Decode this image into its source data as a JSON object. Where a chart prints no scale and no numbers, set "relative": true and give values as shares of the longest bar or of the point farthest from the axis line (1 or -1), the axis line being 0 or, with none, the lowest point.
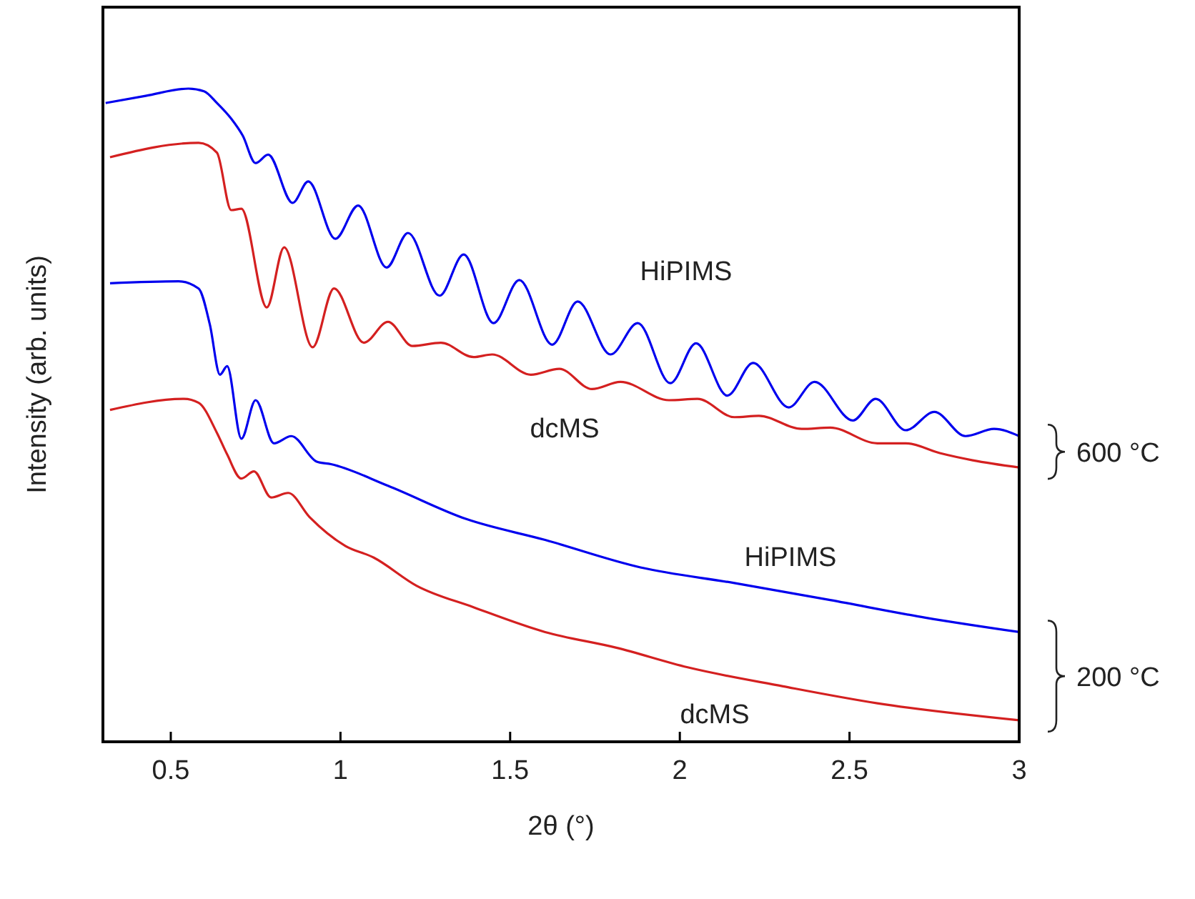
{
  "chart_data": {
    "type": "line",
    "relative": true,
    "xlabel": "2θ (°)",
    "ylabel": "Intensity (arb. units)",
    "xlim": [
      0.3,
      3
    ],
    "xticks": [
      0.5,
      1,
      1.5,
      2,
      2.5,
      3
    ],
    "annotations": [
      "600 °C",
      "200 °C"
    ],
    "series": [
      {
        "name": "HiPIMS",
        "color": "#0000ee",
        "x": [
          0.308,
          0.426,
          0.552,
          0.598,
          0.636,
          0.678,
          0.712,
          0.75,
          0.787,
          0.859,
          0.905,
          0.985,
          1.052,
          1.136,
          1.199,
          1.292,
          1.363,
          1.451,
          1.527,
          1.624,
          1.699,
          1.796,
          1.876,
          1.972,
          2.048,
          2.14,
          2.216,
          2.321,
          2.397,
          2.51,
          2.577,
          2.666,
          2.75,
          2.842,
          2.926,
          3.0
        ],
        "values": [
          0.978,
          0.989,
          1.0,
          0.996,
          0.978,
          0.954,
          0.928,
          0.886,
          0.899,
          0.825,
          0.858,
          0.77,
          0.821,
          0.726,
          0.779,
          0.683,
          0.746,
          0.641,
          0.707,
          0.608,
          0.674,
          0.593,
          0.641,
          0.549,
          0.61,
          0.53,
          0.58,
          0.512,
          0.551,
          0.492,
          0.525,
          0.477,
          0.505,
          0.468,
          0.479,
          0.468
        ]
      },
      {
        "name": "dcMS",
        "color": "#d42020",
        "x": [
          0.321,
          0.582,
          0.636,
          0.678,
          0.708,
          0.783,
          0.834,
          0.918,
          0.981,
          1.069,
          1.14,
          1.212,
          1.296,
          1.392,
          1.447,
          1.561,
          1.645,
          1.741,
          1.825,
          1.968,
          2.052,
          2.161,
          2.233,
          2.359,
          2.443,
          2.582,
          2.666,
          2.766,
          2.863,
          3.0
        ],
        "values": [
          0.895,
          0.917,
          0.902,
          0.814,
          0.816,
          0.665,
          0.757,
          0.604,
          0.694,
          0.611,
          0.643,
          0.606,
          0.611,
          0.589,
          0.593,
          0.562,
          0.571,
          0.54,
          0.551,
          0.523,
          0.525,
          0.497,
          0.499,
          0.479,
          0.481,
          0.457,
          0.457,
          0.442,
          0.431,
          0.42
        ]
      },
      {
        "name": "HiPIMS",
        "color": "#0000ee",
        "x": [
          0.321,
          0.523,
          0.582,
          0.615,
          0.645,
          0.666,
          0.708,
          0.75,
          0.804,
          0.855,
          0.93,
          0.972,
          1.14,
          1.371,
          1.603,
          1.884,
          2.161,
          2.443,
          2.724,
          3.0
        ],
        "values": [
          0.702,
          0.705,
          0.694,
          0.639,
          0.562,
          0.575,
          0.464,
          0.523,
          0.457,
          0.468,
          0.429,
          0.425,
          0.392,
          0.341,
          0.309,
          0.267,
          0.243,
          0.217,
          0.19,
          0.168
        ]
      },
      {
        "name": "dcMS",
        "color": "#d42020",
        "x": [
          0.321,
          0.539,
          0.582,
          0.636,
          0.666,
          0.708,
          0.745,
          0.796,
          0.846,
          0.909,
          1.014,
          1.098,
          1.224,
          1.392,
          1.603,
          1.813,
          2.023,
          2.304,
          2.582,
          3.0
        ],
        "values": [
          0.508,
          0.525,
          0.519,
          0.473,
          0.44,
          0.403,
          0.414,
          0.374,
          0.381,
          0.344,
          0.3,
          0.282,
          0.239,
          0.206,
          0.168,
          0.144,
          0.114,
          0.085,
          0.059,
          0.033
        ]
      }
    ]
  }
}
